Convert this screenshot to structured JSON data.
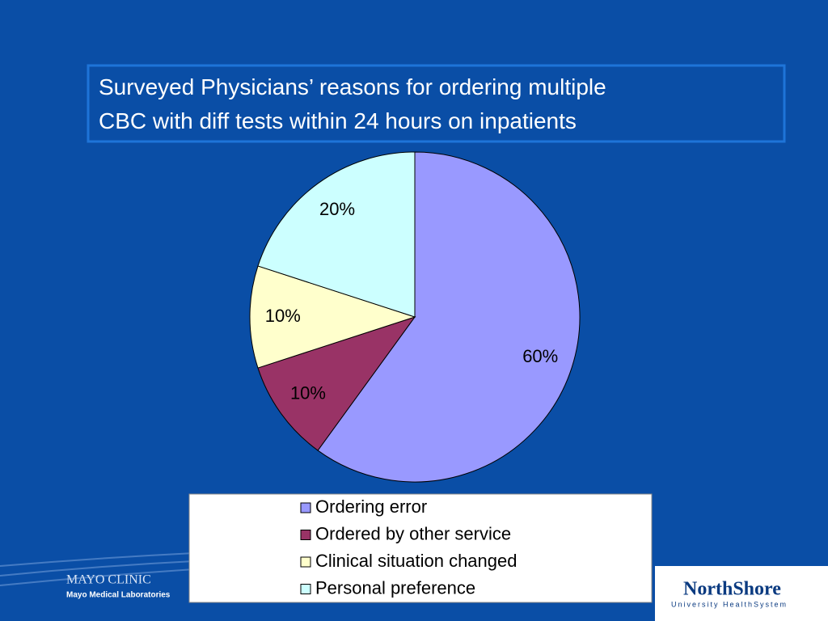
{
  "chart_data": {
    "type": "pie",
    "title": "Surveyed Physicians’ reasons for ordering multiple CBC with diff tests within 24 hours on inpatients",
    "categories": [
      "Ordering error",
      "Ordered by other service",
      "Clinical situation changed",
      "Personal preference"
    ],
    "values": [
      60,
      10,
      10,
      20
    ],
    "value_labels": [
      "60%",
      "10%",
      "10%",
      "20%"
    ],
    "colors": [
      "#9999ff",
      "#993366",
      "#ffffcc",
      "#ccffff"
    ],
    "legend": "bottom"
  },
  "footer": {
    "left_logo": "MAYO CLINIC",
    "left_sub": "Mayo Medical Laboratories",
    "right_logo": "NorthShore",
    "right_sub": "University HealthSystem"
  }
}
